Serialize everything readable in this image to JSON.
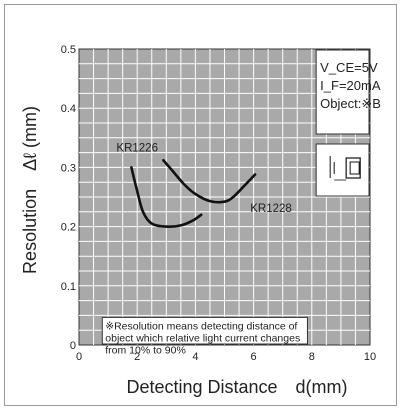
{
  "chart_data": {
    "type": "line",
    "xlabel": "Detecting Distance　d(mm)",
    "ylabel": "Resolution　Δℓ (mm)",
    "xlim": [
      0,
      10
    ],
    "ylim": [
      0,
      0.5
    ],
    "x_ticks": [
      "0",
      "2",
      "4",
      "6",
      "8",
      "10"
    ],
    "y_ticks": [
      "0",
      "0.1",
      "0.2",
      "0.3",
      "0.4",
      "0.5"
    ],
    "grid": true,
    "background": "#a9a9a9",
    "series": [
      {
        "name": "KR1226",
        "points": [
          [
            1.8,
            0.3
          ],
          [
            2.0,
            0.26
          ],
          [
            2.2,
            0.225
          ],
          [
            2.5,
            0.205
          ],
          [
            3.0,
            0.2
          ],
          [
            3.5,
            0.202
          ],
          [
            3.9,
            0.21
          ],
          [
            4.2,
            0.22
          ]
        ],
        "label_x": 2.0,
        "label_y": 0.327
      },
      {
        "name": "KR1228",
        "points": [
          [
            2.9,
            0.312
          ],
          [
            3.2,
            0.295
          ],
          [
            3.6,
            0.272
          ],
          [
            4.0,
            0.255
          ],
          [
            4.5,
            0.243
          ],
          [
            5.0,
            0.242
          ],
          [
            5.3,
            0.25
          ],
          [
            5.7,
            0.27
          ],
          [
            6.05,
            0.288
          ]
        ],
        "label_x": 6.6,
        "label_y": 0.225
      }
    ],
    "conditions": [
      "V_CE=5V",
      "I_F=20mA",
      "Object:※B"
    ],
    "note": [
      "※Resolution means detecting distance of",
      "object which relative light current changes",
      "from 10% to 90%"
    ]
  }
}
